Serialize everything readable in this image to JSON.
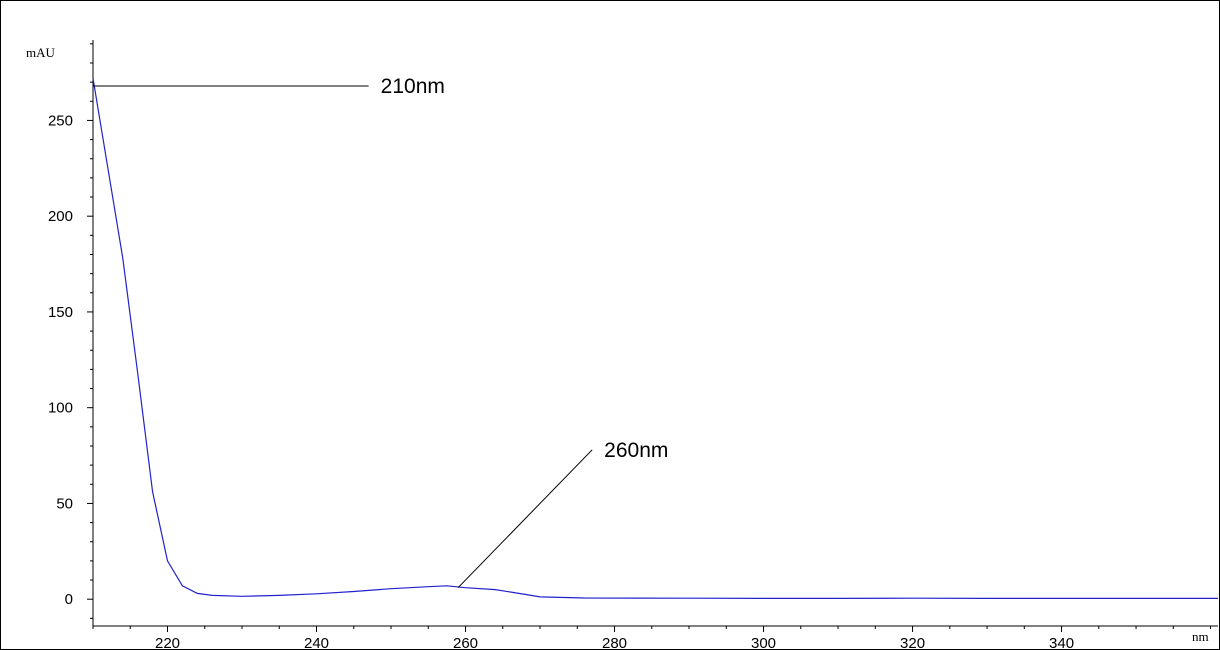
{
  "chart_data": {
    "type": "line",
    "y_unit_label": "mAU",
    "x_unit_label": "nm",
    "xlim": [
      210,
      361
    ],
    "ylim": [
      -14,
      292
    ],
    "x_ticks": [
      220,
      240,
      260,
      280,
      300,
      320,
      340
    ],
    "y_ticks": [
      0,
      50,
      100,
      150,
      200,
      250
    ],
    "grid": false,
    "series": [
      {
        "color": "#2222cc",
        "points": [
          [
            210,
            272
          ],
          [
            212,
            225
          ],
          [
            214,
            178
          ],
          [
            216,
            118
          ],
          [
            218,
            56
          ],
          [
            220,
            20
          ],
          [
            222,
            7
          ],
          [
            224,
            3
          ],
          [
            226,
            2
          ],
          [
            230,
            1.5
          ],
          [
            235,
            2
          ],
          [
            240,
            2.8
          ],
          [
            245,
            4
          ],
          [
            250,
            5.5
          ],
          [
            255,
            6.5
          ],
          [
            257.5,
            7
          ],
          [
            260,
            6
          ],
          [
            264,
            5
          ],
          [
            268,
            2.5
          ],
          [
            270,
            1.2
          ],
          [
            276,
            0.6
          ],
          [
            290,
            0.5
          ],
          [
            300,
            0.4
          ],
          [
            310,
            0.4
          ],
          [
            320,
            0.5
          ],
          [
            330,
            0.4
          ],
          [
            340,
            0.4
          ],
          [
            350,
            0.4
          ],
          [
            361,
            0.4
          ]
        ]
      }
    ],
    "annotations": [
      {
        "label": "210nm",
        "point": [
          210,
          268
        ],
        "text_anchor": [
          247,
          268
        ]
      },
      {
        "label": "260nm",
        "point": [
          259,
          6
        ],
        "text_anchor": [
          277,
          78
        ]
      }
    ]
  }
}
